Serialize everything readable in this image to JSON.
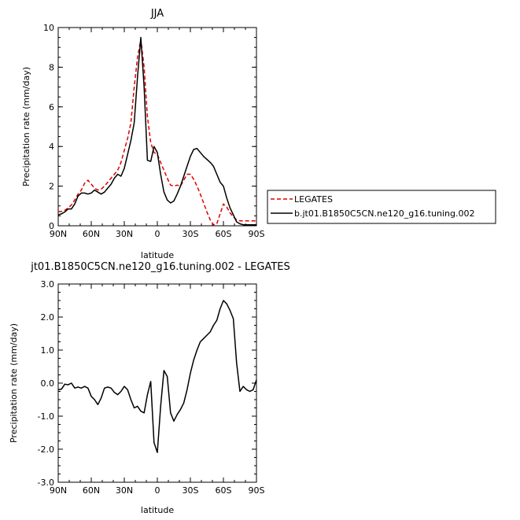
{
  "chart_data": [
    {
      "type": "line",
      "title": "JJA",
      "xlabel": "latitude",
      "ylabel": "Precipitation rate (mm/day)",
      "x": [
        90,
        87,
        84,
        81,
        78,
        75,
        72,
        69,
        66,
        63,
        60,
        57,
        54,
        51,
        48,
        45,
        42,
        39,
        36,
        33,
        30,
        27,
        24,
        21,
        18,
        15,
        12,
        9,
        6,
        3,
        0,
        -3,
        -6,
        -9,
        -12,
        -15,
        -18,
        -21,
        -24,
        -27,
        -30,
        -33,
        -36,
        -39,
        -42,
        -45,
        -48,
        -51,
        -54,
        -57,
        -60,
        -63,
        -66,
        -69,
        -72,
        -75,
        -78,
        -81,
        -84,
        -87,
        -90
      ],
      "x_ticks": [
        {
          "v": 90,
          "label": "90N"
        },
        {
          "v": 60,
          "label": "60N"
        },
        {
          "v": 30,
          "label": "30N"
        },
        {
          "v": 0,
          "label": "0"
        },
        {
          "v": -30,
          "label": "30S"
        },
        {
          "v": -60,
          "label": "60S"
        },
        {
          "v": -90,
          "label": "90S"
        }
      ],
      "y_ticks": [
        {
          "v": 0,
          "label": "0"
        },
        {
          "v": 2,
          "label": "2"
        },
        {
          "v": 4,
          "label": "4"
        },
        {
          "v": 6,
          "label": "6"
        },
        {
          "v": 8,
          "label": "8"
        },
        {
          "v": 10,
          "label": "10"
        }
      ],
      "xlim": [
        90,
        -90
      ],
      "ylim": [
        0,
        10
      ],
      "legend_position": "right",
      "series": [
        {
          "name": "LEGATES",
          "color": "#dd0000",
          "dash": "dashed",
          "values": [
            0.72,
            0.72,
            0.78,
            0.9,
            1.05,
            1.3,
            1.6,
            1.8,
            2.15,
            2.3,
            2.1,
            1.9,
            1.8,
            1.85,
            2.0,
            2.2,
            2.4,
            2.6,
            2.8,
            3.2,
            3.8,
            4.4,
            5.2,
            7.0,
            8.5,
            9.4,
            8.0,
            5.5,
            4.2,
            3.7,
            3.6,
            3.2,
            2.8,
            2.4,
            2.05,
            2.0,
            2.05,
            2.0,
            2.3,
            2.6,
            2.6,
            2.35,
            2.0,
            1.6,
            1.15,
            0.7,
            0.3,
            0.05,
            0.1,
            0.6,
            1.1,
            0.95,
            0.65,
            0.45,
            0.3,
            0.25,
            0.25,
            0.25,
            0.25,
            0.25,
            0.25
          ]
        },
        {
          "name": "b.jt01.B1850C5CN.ne120_g16.tuning.002",
          "color": "#000000",
          "dash": "solid",
          "values": [
            0.55,
            0.6,
            0.7,
            0.85,
            0.85,
            1.1,
            1.5,
            1.65,
            1.65,
            1.6,
            1.65,
            1.8,
            1.7,
            1.6,
            1.7,
            1.9,
            2.1,
            2.4,
            2.6,
            2.5,
            2.9,
            3.6,
            4.3,
            5.2,
            7.5,
            9.5,
            7.0,
            3.3,
            3.25,
            4.0,
            3.7,
            2.6,
            1.7,
            1.3,
            1.15,
            1.25,
            1.6,
            2.0,
            2.5,
            3.0,
            3.5,
            3.85,
            3.9,
            3.7,
            3.5,
            3.35,
            3.2,
            3.0,
            2.6,
            2.2,
            2.0,
            1.4,
            0.9,
            0.55,
            0.2,
            0.1,
            0.05,
            0.05,
            0.05,
            0.05,
            0.05
          ]
        }
      ]
    },
    {
      "type": "line",
      "title": "jt01.B1850C5CN.ne120_g16.tuning.002 - LEGATES",
      "xlabel": "latitude",
      "ylabel": "Precipitation rate (mm/day)",
      "x": [
        90,
        87,
        84,
        81,
        78,
        75,
        72,
        69,
        66,
        63,
        60,
        57,
        54,
        51,
        48,
        45,
        42,
        39,
        36,
        33,
        30,
        27,
        24,
        21,
        18,
        15,
        12,
        9,
        6,
        3,
        0,
        -3,
        -6,
        -9,
        -12,
        -15,
        -18,
        -21,
        -24,
        -27,
        -30,
        -33,
        -36,
        -39,
        -42,
        -45,
        -48,
        -51,
        -54,
        -57,
        -60,
        -63,
        -66,
        -69,
        -72,
        -75,
        -78,
        -81,
        -84,
        -87,
        -90
      ],
      "x_ticks": [
        {
          "v": 90,
          "label": "90N"
        },
        {
          "v": 60,
          "label": "60N"
        },
        {
          "v": 30,
          "label": "30N"
        },
        {
          "v": 0,
          "label": "0"
        },
        {
          "v": -30,
          "label": "30S"
        },
        {
          "v": -60,
          "label": "60S"
        },
        {
          "v": -90,
          "label": "90S"
        }
      ],
      "y_ticks": [
        {
          "v": -3,
          "label": "-3.0"
        },
        {
          "v": -2,
          "label": "-2.0"
        },
        {
          "v": -1,
          "label": "-1.0"
        },
        {
          "v": 0,
          "label": "0.0"
        },
        {
          "v": 1,
          "label": "1.0"
        },
        {
          "v": 2,
          "label": "2.0"
        },
        {
          "v": 3,
          "label": "3.0"
        }
      ],
      "xlim": [
        90,
        -90
      ],
      "ylim": [
        -3,
        3
      ],
      "series": [
        {
          "name": "",
          "color": "#000000",
          "dash": "solid",
          "values": [
            -0.2,
            -0.18,
            -0.03,
            -0.05,
            0.0,
            -0.15,
            -0.12,
            -0.15,
            -0.1,
            -0.15,
            -0.4,
            -0.5,
            -0.65,
            -0.45,
            -0.15,
            -0.12,
            -0.15,
            -0.28,
            -0.35,
            -0.25,
            -0.1,
            -0.2,
            -0.5,
            -0.75,
            -0.7,
            -0.85,
            -0.9,
            -0.35,
            0.05,
            -1.8,
            -2.1,
            -0.7,
            0.38,
            0.2,
            -0.9,
            -1.15,
            -0.95,
            -0.8,
            -0.6,
            -0.2,
            0.3,
            0.7,
            1.0,
            1.25,
            1.35,
            1.45,
            1.55,
            1.75,
            1.9,
            2.25,
            2.5,
            2.4,
            2.2,
            1.95,
            0.6,
            -0.25,
            -0.1,
            -0.2,
            -0.25,
            -0.2,
            0.1
          ]
        }
      ]
    }
  ]
}
